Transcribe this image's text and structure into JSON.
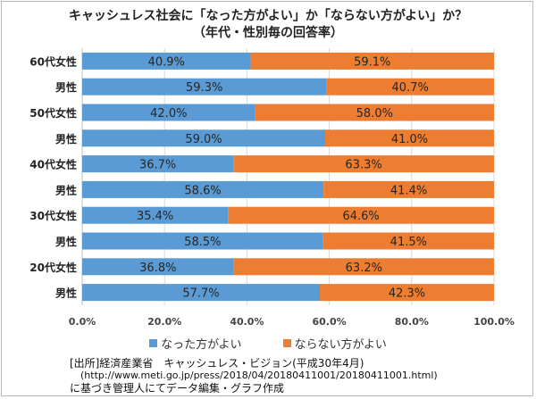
{
  "title_line1": "キャッシュレス社会に「なった方がよい」か「ならない方がよい」か？",
  "title_line2": "（年代・性別毎の回答率）",
  "colors": {
    "series1": "#5b9bd5",
    "series2": "#ed7d31",
    "grid": "#d9d9d9",
    "axis": "#bfbfbf"
  },
  "chart_data": {
    "type": "bar",
    "orientation": "horizontal",
    "stacked": true,
    "title": "キャッシュレス社会に「なった方がよい」か「ならない方がよい」か？",
    "subtitle": "（年代・性別毎の回答率）",
    "categories": [
      "60代女性",
      "男性",
      "50代女性",
      "男性",
      "40代女性",
      "男性",
      "30代女性",
      "男性",
      "20代女性",
      "男性"
    ],
    "series": [
      {
        "name": "なった方がよい",
        "values": [
          40.9,
          59.3,
          42.0,
          59.0,
          36.7,
          58.6,
          35.4,
          58.5,
          36.8,
          57.7
        ],
        "labels": [
          "40.9%",
          "59.3%",
          "42.0%",
          "59.0%",
          "36.7%",
          "58.6%",
          "35.4%",
          "58.5%",
          "36.8%",
          "57.7%"
        ]
      },
      {
        "name": "ならない方がよい",
        "values": [
          59.1,
          40.7,
          58.0,
          41.0,
          63.3,
          41.4,
          64.6,
          41.5,
          63.2,
          42.3
        ],
        "labels": [
          "59.1%",
          "40.7%",
          "58.0%",
          "41.0%",
          "63.3%",
          "41.4%",
          "64.6%",
          "41.5%",
          "63.2%",
          "42.3%"
        ]
      }
    ],
    "xlim": [
      0,
      100
    ],
    "x_ticks": [
      0,
      20,
      40,
      60,
      80,
      100
    ],
    "x_tick_labels": [
      "0.0%",
      "20.0%",
      "40.0%",
      "60.0%",
      "80.0%",
      "100.0%"
    ],
    "grid": true,
    "legend": "bottom"
  },
  "source": {
    "line1": "[出所]経済産業省　キャッシュレス・ビジョン(平成30年4月)",
    "line2": "(http://www.meti.go.jp/press/2018/04/20180411001/20180411001.html)",
    "line3": "に基づき管理人にてデータ編集・グラフ作成"
  }
}
